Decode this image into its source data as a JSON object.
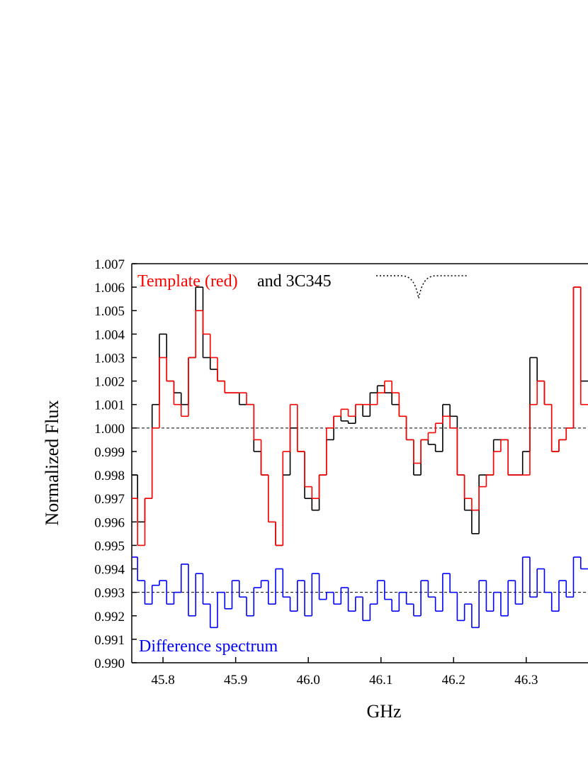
{
  "chart_data": {
    "type": "step",
    "x_label": "GHz",
    "y_label": "Normalized Flux",
    "annotations": [
      "Template (red)",
      "and 3C345",
      "Difference spectrum"
    ],
    "x": [
      45.76,
      45.77,
      45.78,
      45.79,
      45.8,
      45.81,
      45.82,
      45.83,
      45.84,
      45.85,
      45.86,
      45.87,
      45.88,
      45.89,
      45.9,
      45.91,
      45.92,
      45.93,
      45.94,
      45.95,
      45.96,
      45.97,
      45.98,
      45.99,
      46.0,
      46.01,
      46.02,
      46.03,
      46.04,
      46.05,
      46.06,
      46.07,
      46.08,
      46.09,
      46.1,
      46.11,
      46.12,
      46.13,
      46.14,
      46.15,
      46.16,
      46.17,
      46.18,
      46.19,
      46.2,
      46.21,
      46.22,
      46.23,
      46.24,
      46.25,
      46.26,
      46.27,
      46.28,
      46.29,
      46.3,
      46.31,
      46.32,
      46.33,
      46.34,
      46.35,
      46.36,
      46.37,
      46.38
    ],
    "series": [
      {
        "color": "#000000",
        "values": [
          0.998,
          0.996,
          0.997,
          1.001,
          1.004,
          1.002,
          1.0015,
          1.001,
          1.003,
          1.006,
          1.003,
          1.0025,
          1.002,
          1.0015,
          1.0015,
          1.001,
          1.001,
          0.999,
          0.998,
          0.996,
          0.995,
          0.998,
          1.0,
          0.999,
          0.997,
          0.9965,
          0.998,
          0.9995,
          1.0005,
          1.0003,
          1.0002,
          1.001,
          1.0005,
          1.0015,
          1.0018,
          1.0015,
          1.001,
          1.0005,
          0.9995,
          0.998,
          0.9995,
          0.9993,
          0.999,
          1.001,
          1.0005,
          0.998,
          0.9965,
          0.9955,
          0.998,
          0.998,
          0.9995,
          0.9995,
          0.998,
          0.998,
          0.999,
          1.003,
          1.002,
          1.001,
          0.999,
          0.9995,
          1.0,
          1.006,
          1.002
        ]
      },
      {
        "color": "#ff0000",
        "values": [
          0.997,
          0.995,
          0.997,
          1.0,
          1.003,
          1.002,
          1.001,
          1.0005,
          1.003,
          1.005,
          1.004,
          1.003,
          1.002,
          1.0015,
          1.0015,
          1.0015,
          1.001,
          0.9995,
          0.998,
          0.996,
          0.995,
          0.999,
          1.001,
          0.999,
          0.9975,
          0.997,
          0.998,
          1.0,
          1.0005,
          1.0008,
          1.0005,
          1.001,
          1.001,
          1.001,
          1.0015,
          1.002,
          1.0015,
          1.0005,
          0.9995,
          0.9985,
          0.9995,
          0.9998,
          1.0002,
          1.0005,
          1.0,
          0.998,
          0.997,
          0.9965,
          0.9975,
          0.998,
          0.999,
          0.9995,
          0.998,
          0.998,
          0.998,
          1.001,
          1.002,
          1.001,
          0.999,
          0.9995,
          1.0,
          1.006,
          1.001
        ]
      },
      {
        "color": "#0000ff",
        "values": [
          0.9945,
          0.9935,
          0.9925,
          0.9933,
          0.9935,
          0.9925,
          0.993,
          0.9942,
          0.992,
          0.9938,
          0.9925,
          0.9915,
          0.993,
          0.9923,
          0.9935,
          0.9928,
          0.992,
          0.9932,
          0.9935,
          0.9925,
          0.994,
          0.9928,
          0.9922,
          0.9935,
          0.992,
          0.9938,
          0.9927,
          0.993,
          0.9925,
          0.9932,
          0.9922,
          0.9928,
          0.9918,
          0.9925,
          0.9935,
          0.9927,
          0.9922,
          0.993,
          0.9925,
          0.992,
          0.9935,
          0.9928,
          0.9922,
          0.9938,
          0.993,
          0.9918,
          0.9925,
          0.9915,
          0.9935,
          0.9922,
          0.993,
          0.992,
          0.9935,
          0.9925,
          0.9945,
          0.9928,
          0.994,
          0.993,
          0.9922,
          0.9935,
          0.9928,
          0.9945,
          0.994
        ]
      }
    ],
    "hlines": [
      1.0,
      0.993
    ],
    "xlim": [
      45.757,
      46.385
    ],
    "ylim": [
      0.99,
      1.007
    ],
    "xticks": [
      45.8,
      45.9,
      {
        "value": 46.0,
        "label": "46.0"
      },
      46.1,
      46.2,
      46.3
    ],
    "yticks": [
      {
        "value": 0.99,
        "label": "0.990"
      },
      0.991,
      0.992,
      0.993,
      0.994,
      0.995,
      0.996,
      0.997,
      0.998,
      0.999,
      {
        "value": 1.0,
        "label": "1.000"
      },
      1.001,
      1.002,
      1.003,
      1.004,
      1.005,
      1.006,
      1.007
    ]
  }
}
